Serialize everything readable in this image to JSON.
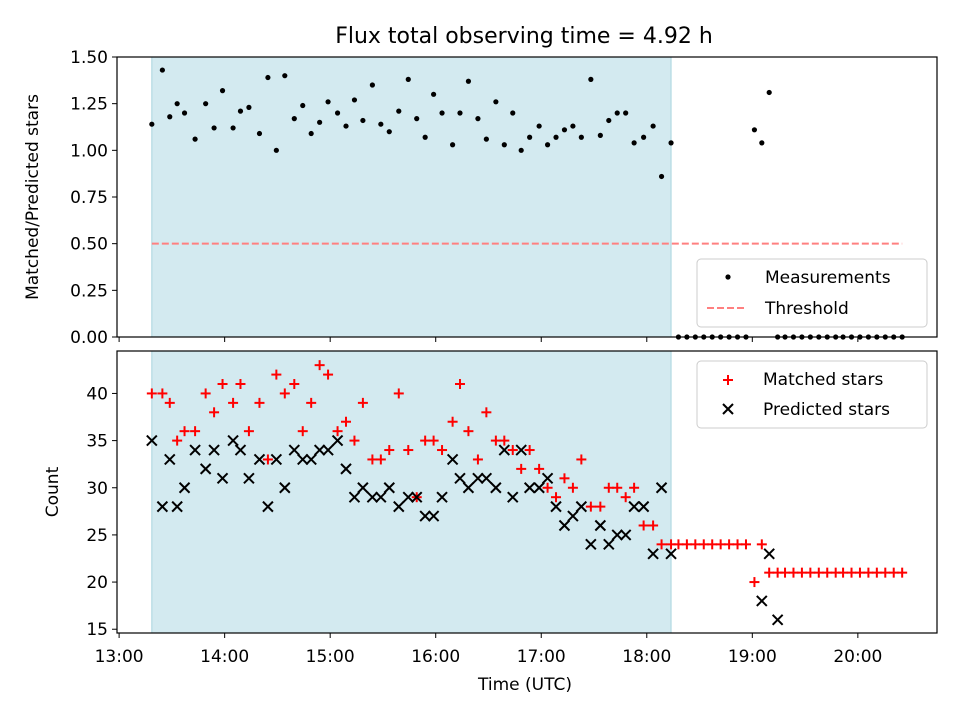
{
  "title": "Flux total observing time = 4.92 h",
  "xlabel": "Time (UTC)",
  "x_ticks": [
    {
      "label": "13:00",
      "t": 13.0
    },
    {
      "label": "14:00",
      "t": 14.0
    },
    {
      "label": "15:00",
      "t": 15.0
    },
    {
      "label": "16:00",
      "t": 16.0
    },
    {
      "label": "17:00",
      "t": 17.0
    },
    {
      "label": "18:00",
      "t": 18.0
    },
    {
      "label": "19:00",
      "t": 19.0
    },
    {
      "label": "20:00",
      "t": 20.0
    }
  ],
  "xlim": [
    12.98,
    20.75
  ],
  "shade": {
    "start": 13.31,
    "end": 18.23,
    "color": "#d3eaf0"
  },
  "chart_data": [
    {
      "type": "scatter",
      "ylabel": "Matched/Predicted stars",
      "ylim": [
        0,
        1.5
      ],
      "y_ticks": [
        "0.00",
        "0.25",
        "0.50",
        "0.75",
        "1.00",
        "1.25",
        "1.50"
      ],
      "threshold": {
        "value": 0.5,
        "x_range": [
          13.31,
          20.42
        ],
        "color": "#ff8080"
      },
      "legend": {
        "position": "lower-right",
        "measurements": "Measurements",
        "threshold": "Threshold"
      },
      "series": [
        {
          "name": "Measurements",
          "x": [
            13.31,
            13.41,
            13.48,
            13.55,
            13.62,
            13.72,
            13.82,
            13.9,
            13.98,
            14.08,
            14.15,
            14.23,
            14.33,
            14.41,
            14.49,
            14.57,
            14.66,
            14.74,
            14.82,
            14.9,
            14.98,
            15.07,
            15.15,
            15.23,
            15.31,
            15.4,
            15.48,
            15.56,
            15.65,
            15.74,
            15.82,
            15.9,
            15.98,
            16.06,
            16.16,
            16.23,
            16.31,
            16.4,
            16.48,
            16.57,
            16.65,
            16.73,
            16.81,
            16.89,
            16.98,
            17.06,
            17.14,
            17.22,
            17.3,
            17.38,
            17.47,
            17.56,
            17.64,
            17.72,
            17.8,
            17.88,
            17.97,
            18.06,
            18.14,
            18.23,
            18.3,
            18.38,
            18.46,
            18.54,
            18.62,
            18.7,
            18.78,
            18.86,
            18.94,
            19.02,
            19.09,
            19.16,
            19.24,
            19.31,
            19.39,
            19.47,
            19.55,
            19.63,
            19.71,
            19.79,
            19.86,
            19.94,
            20.02,
            20.1,
            20.18,
            20.26,
            20.34,
            20.42
          ],
          "y": [
            1.14,
            1.43,
            1.18,
            1.25,
            1.2,
            1.06,
            1.25,
            1.12,
            1.32,
            1.12,
            1.21,
            1.23,
            1.09,
            1.39,
            1.0,
            1.4,
            1.17,
            1.24,
            1.09,
            1.15,
            1.26,
            1.2,
            1.13,
            1.27,
            1.16,
            1.35,
            1.14,
            1.1,
            1.21,
            1.38,
            1.17,
            1.07,
            1.3,
            1.2,
            1.03,
            1.2,
            1.37,
            1.17,
            1.06,
            1.26,
            1.03,
            1.2,
            1.0,
            1.07,
            1.13,
            1.03,
            1.07,
            1.11,
            1.13,
            1.07,
            1.38,
            1.08,
            1.16,
            1.2,
            1.2,
            1.04,
            1.07,
            1.13,
            0.86,
            1.04,
            0,
            0,
            0,
            0,
            0,
            0,
            0,
            0,
            0,
            1.11,
            1.04,
            1.31,
            0,
            0,
            0,
            0,
            0,
            0,
            0,
            0,
            0,
            0,
            0,
            0,
            0,
            0,
            0,
            0
          ]
        }
      ]
    },
    {
      "type": "scatter",
      "ylabel": "Count",
      "ylim": [
        14.6,
        44.5
      ],
      "y_ticks": [
        "15",
        "20",
        "25",
        "30",
        "35",
        "40"
      ],
      "legend": {
        "position": "top-right",
        "matched": "Matched stars",
        "predicted": "Predicted stars"
      },
      "series": [
        {
          "name": "Matched stars",
          "color": "#ff0000",
          "x": [
            13.31,
            13.41,
            13.48,
            13.55,
            13.62,
            13.72,
            13.82,
            13.9,
            13.98,
            14.08,
            14.15,
            14.23,
            14.33,
            14.41,
            14.49,
            14.57,
            14.66,
            14.74,
            14.82,
            14.9,
            14.98,
            15.07,
            15.15,
            15.23,
            15.31,
            15.4,
            15.48,
            15.56,
            15.65,
            15.74,
            15.82,
            15.9,
            15.98,
            16.06,
            16.16,
            16.23,
            16.31,
            16.4,
            16.48,
            16.57,
            16.65,
            16.73,
            16.81,
            16.89,
            16.98,
            17.06,
            17.14,
            17.22,
            17.3,
            17.38,
            17.47,
            17.56,
            17.64,
            17.72,
            17.8,
            17.88,
            17.97,
            18.06,
            18.14,
            18.23,
            18.3,
            18.38,
            18.46,
            18.54,
            18.62,
            18.7,
            18.78,
            18.86,
            18.94,
            19.02,
            19.09,
            19.16,
            19.24,
            19.31,
            19.39,
            19.47,
            19.55,
            19.63,
            19.71,
            19.79,
            19.86,
            19.94,
            20.02,
            20.1,
            20.18,
            20.26,
            20.34,
            20.42
          ],
          "y": [
            40,
            40,
            39,
            35,
            36,
            36,
            40,
            38,
            41,
            39,
            41,
            36,
            39,
            33,
            42,
            40,
            41,
            36,
            39,
            43,
            42,
            36,
            37,
            35,
            39,
            33,
            33,
            34,
            40,
            34,
            29,
            35,
            35,
            34,
            37,
            41,
            36,
            33,
            38,
            35,
            35,
            34,
            32,
            34,
            32,
            30,
            29,
            31,
            30,
            33,
            28,
            28,
            30,
            30,
            29,
            30,
            26,
            26,
            24,
            24,
            24,
            24,
            24,
            24,
            24,
            24,
            24,
            24,
            24,
            20,
            24,
            21,
            21,
            21,
            21,
            21,
            21,
            21,
            21,
            21,
            21,
            21,
            21,
            21,
            21,
            21,
            21,
            21
          ]
        },
        {
          "name": "Predicted stars",
          "color": "#000000",
          "x": [
            13.31,
            13.41,
            13.48,
            13.55,
            13.62,
            13.72,
            13.82,
            13.9,
            13.98,
            14.08,
            14.15,
            14.23,
            14.33,
            14.41,
            14.49,
            14.57,
            14.66,
            14.74,
            14.82,
            14.9,
            14.98,
            15.07,
            15.15,
            15.23,
            15.31,
            15.4,
            15.48,
            15.56,
            15.65,
            15.74,
            15.82,
            15.9,
            15.98,
            16.06,
            16.16,
            16.23,
            16.31,
            16.4,
            16.48,
            16.57,
            16.65,
            16.73,
            16.81,
            16.89,
            16.98,
            17.06,
            17.14,
            17.22,
            17.3,
            17.38,
            17.47,
            17.56,
            17.64,
            17.72,
            17.8,
            17.88,
            17.97,
            18.06,
            18.14,
            18.23,
            19.09,
            19.16,
            19.24
          ],
          "y": [
            35,
            28,
            33,
            28,
            30,
            34,
            32,
            34,
            31,
            35,
            34,
            31,
            33,
            28,
            33,
            30,
            34,
            33,
            33,
            34,
            34,
            35,
            32,
            29,
            30,
            29,
            29,
            30,
            28,
            29,
            29,
            27,
            27,
            29,
            33,
            31,
            30,
            31,
            31,
            30,
            34,
            29,
            34,
            30,
            30,
            31,
            28,
            26,
            27,
            28,
            24,
            26,
            24,
            25,
            25,
            28,
            28,
            23,
            30,
            23,
            18,
            23,
            16
          ]
        }
      ]
    }
  ]
}
